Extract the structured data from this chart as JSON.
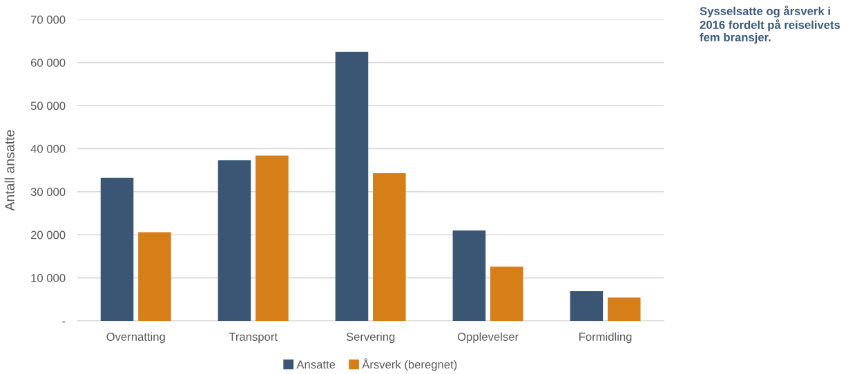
{
  "chart_data": {
    "type": "bar",
    "title": "Sysselsatte og årsverk i 2016 fordelt på reiselivets fem bransjer.",
    "ylabel": "Antall ansatte",
    "categories": [
      "Overnatting",
      "Transport",
      "Servering",
      "Opplevelser",
      "Formidling"
    ],
    "series": [
      {
        "name": "Ansatte",
        "color": "#3a5674",
        "values": [
          33200,
          37300,
          62500,
          21000,
          6900
        ]
      },
      {
        "name": "Årsverk (beregnet)",
        "color": "#d67e17",
        "values": [
          20600,
          38400,
          34300,
          12600,
          5400
        ]
      }
    ],
    "ylim": [
      0,
      70000
    ],
    "yticks": [
      {
        "value": 0,
        "label": "-"
      },
      {
        "value": 10000,
        "label": "10 000"
      },
      {
        "value": 20000,
        "label": "20 000"
      },
      {
        "value": 30000,
        "label": "30 000"
      },
      {
        "value": 40000,
        "label": "40 000"
      },
      {
        "value": 50000,
        "label": "50 000"
      },
      {
        "value": 60000,
        "label": "60 000"
      },
      {
        "value": 70000,
        "label": "70 000"
      }
    ],
    "grid": "y",
    "legend": "bottom"
  }
}
